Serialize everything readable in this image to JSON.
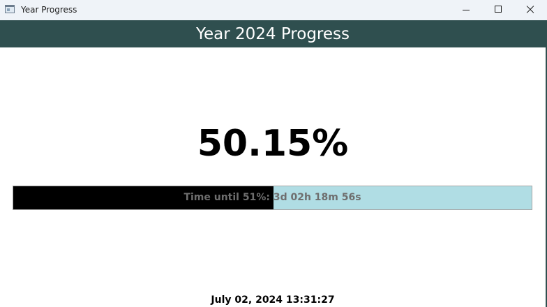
{
  "window": {
    "title": "Year Progress",
    "icon": "app-window-icon",
    "controls": [
      "minimize-icon",
      "maximize-icon",
      "close-icon"
    ]
  },
  "header": {
    "title": "Year 2024 Progress"
  },
  "progress": {
    "percent_text": "50.15%",
    "fill_fraction": 0.5015,
    "label": "Time until 51%: 3d 02h 18m 56s"
  },
  "footer": {
    "datetime": "July 02, 2024 13:31:27"
  },
  "colors": {
    "header_bg": "#2f4f4f",
    "bar_track": "#b0dde4",
    "bar_fill": "#000000",
    "bar_label": "#6e6e6e"
  }
}
